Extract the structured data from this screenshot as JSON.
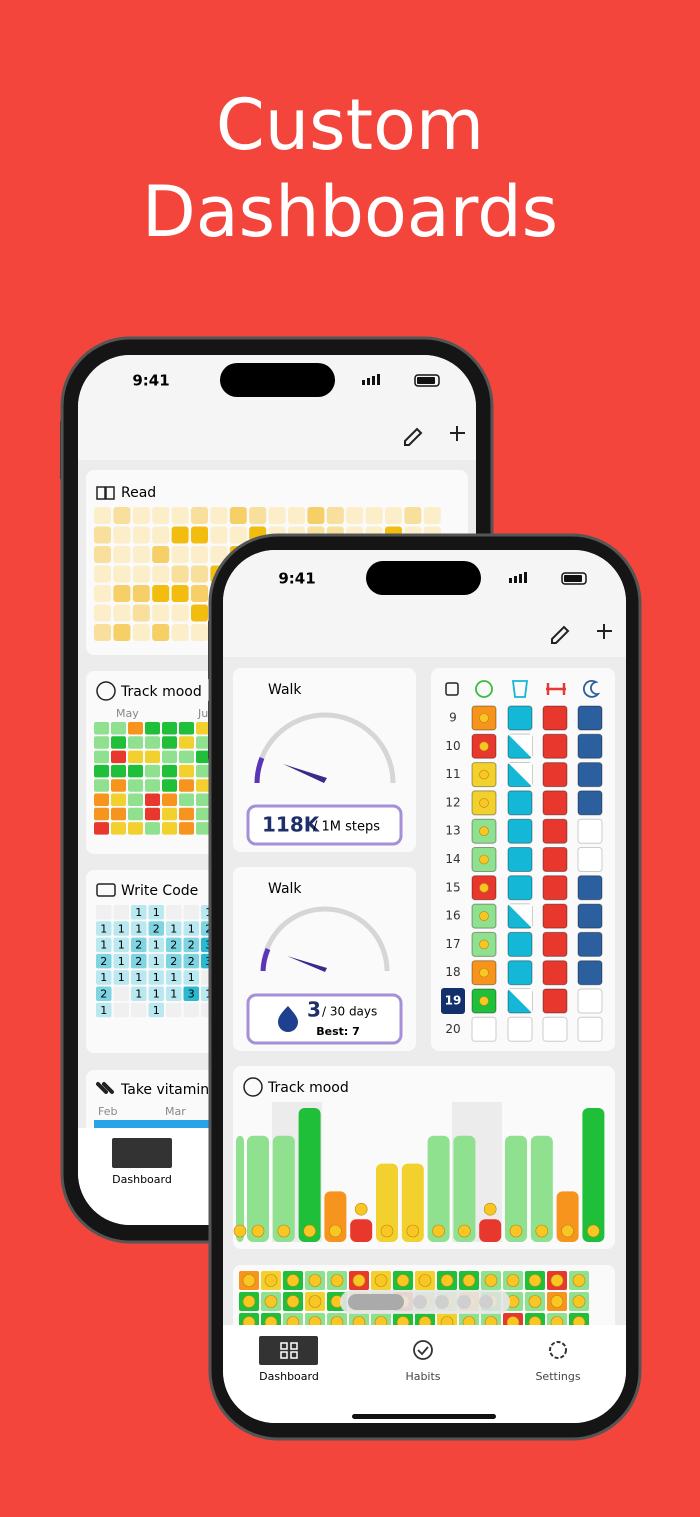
{
  "headline": [
    "Custom",
    "Dashboards"
  ],
  "back_phone": {
    "status_time": "9:41",
    "read": {
      "title": "Read"
    },
    "track_mood": {
      "title": "Track mood",
      "months": [
        "May",
        "Jun"
      ]
    },
    "write_code": {
      "title": "Write Code",
      "cells": [
        [
          null,
          null,
          1,
          1,
          null,
          null,
          1
        ],
        [
          1,
          1,
          1,
          2,
          1,
          1,
          2
        ],
        [
          1,
          1,
          2,
          1,
          2,
          2,
          3
        ],
        [
          2,
          1,
          2,
          1,
          2,
          2,
          3
        ],
        [
          1,
          1,
          1,
          1,
          1,
          1,
          null
        ],
        [
          2,
          null,
          1,
          1,
          1,
          3,
          1
        ],
        [
          1,
          null,
          null,
          1,
          null,
          null,
          null
        ]
      ]
    },
    "take_vitamins": {
      "title": "Take vitamins",
      "months": [
        "Feb",
        "Mar"
      ]
    },
    "nav": [
      "Dashboard"
    ]
  },
  "front_phone": {
    "status_time": "9:41",
    "walk_steps": {
      "title": "Walk",
      "amount": "118K",
      "goal": "/ 1M steps"
    },
    "walk_streak": {
      "title": "Walk",
      "streak": 3,
      "goal": "/ 30 days",
      "best": "Best: 7"
    },
    "habit_days": [
      9,
      10,
      11,
      12,
      13,
      14,
      15,
      16,
      17,
      18,
      19,
      20
    ],
    "mood_chart": {
      "title": "Track mood",
      "values": [
        4,
        4,
        4,
        5,
        2,
        1,
        3,
        3,
        4,
        4,
        1,
        4,
        4,
        2,
        5
      ]
    },
    "nav": [
      "Dashboard",
      "Habits",
      "Settings"
    ]
  }
}
